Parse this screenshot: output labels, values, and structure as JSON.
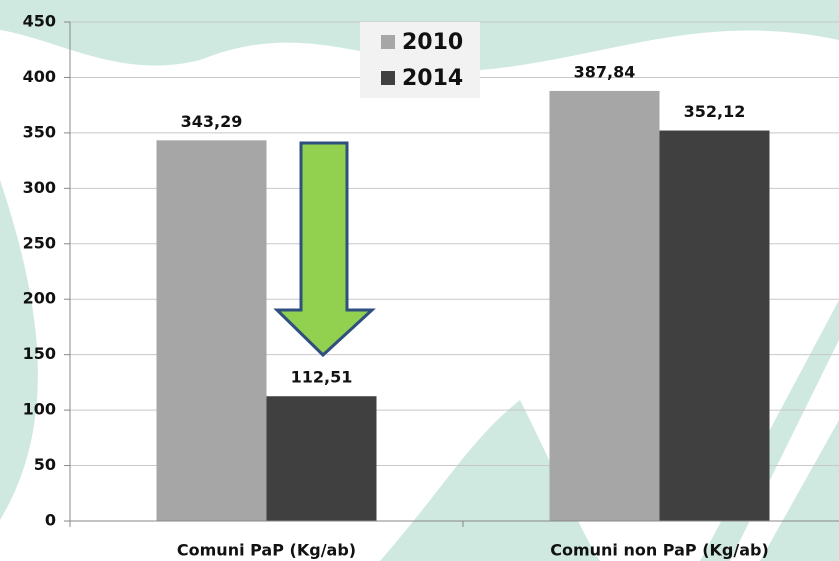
{
  "chart_data": {
    "type": "bar",
    "categories": [
      "Comuni PaP (Kg/ab)",
      "Comuni non PaP (Kg/ab)"
    ],
    "series": [
      {
        "name": "2010",
        "color": "#a6a6a6",
        "values": [
          343.29,
          387.84
        ],
        "value_labels": [
          "343,29",
          "387,84"
        ]
      },
      {
        "name": "2014",
        "color": "#404040",
        "values": [
          112.51,
          352.12
        ],
        "value_labels": [
          "112,51",
          "352,12"
        ]
      }
    ],
    "ylim": [
      0,
      450
    ],
    "yticks": [
      0,
      50,
      100,
      150,
      200,
      250,
      300,
      350,
      400,
      450
    ],
    "grid": true
  }
}
